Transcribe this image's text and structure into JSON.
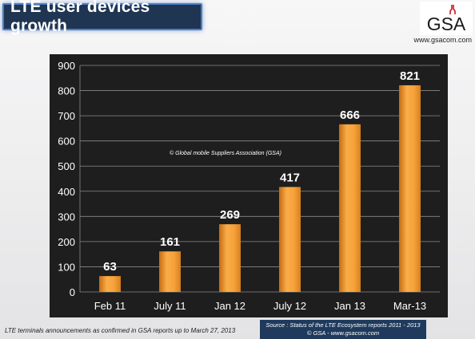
{
  "header": {
    "title": "LTE user devices growth",
    "logo_text": "GSA",
    "website": "www.gsacom.com"
  },
  "footer": {
    "note": "LTE terminals announcements as confirmed in GSA reports up to March 27, 2013",
    "source_line1": "Source : Status of the LTE Ecosystem reports 2011 - 2013",
    "source_line2": "© GSA - www.gsacom.com"
  },
  "colors": {
    "bar": "#f7a13a",
    "plot_background": "#1e1e1e",
    "title_background": "#1f3552",
    "source_background": "#1f3a5c"
  },
  "chart_data": {
    "type": "bar",
    "categories": [
      "Feb 11",
      "July 11",
      "Jan 12",
      "July 12",
      "Jan 13",
      "Mar-13"
    ],
    "values": [
      63,
      161,
      269,
      417,
      666,
      821
    ],
    "data_labels": [
      "63",
      "161",
      "269",
      "417",
      "666",
      "821"
    ],
    "y_ticks": [
      0,
      100,
      200,
      300,
      400,
      500,
      600,
      700,
      800,
      900
    ],
    "ylim": [
      0,
      900
    ],
    "grid": true,
    "annotation": "© Global mobile Suppliers Association (GSA)"
  }
}
